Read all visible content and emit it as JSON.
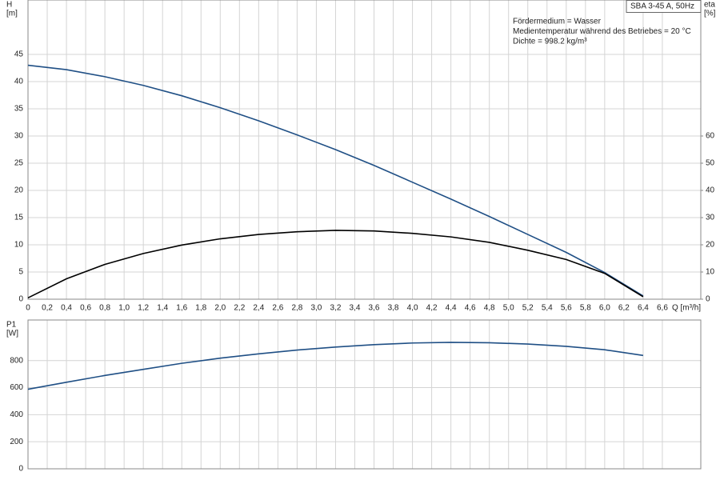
{
  "chart_data": [
    {
      "type": "line",
      "title": "SBA 3-45 A, 50Hz",
      "annotations": [
        "Fördermedium = Wasser",
        "Medientemperatur während des Betriebes = 20 °C",
        "Dichte = 998.2 kg/m³"
      ],
      "xlabel": "Q [m³/h]",
      "x": [
        0,
        0.4,
        0.8,
        1.2,
        1.6,
        2.0,
        2.4,
        2.8,
        3.2,
        3.6,
        4.0,
        4.4,
        4.8,
        5.2,
        5.6,
        6.0,
        6.4
      ],
      "series": [
        {
          "name": "H",
          "unit": "[m]",
          "color": "#1f4f85",
          "values": [
            43,
            42.2,
            40.9,
            39.3,
            37.4,
            35.2,
            32.8,
            30.2,
            27.5,
            24.6,
            21.5,
            18.4,
            15.2,
            11.9,
            8.6,
            4.9,
            0.6
          ]
        },
        {
          "name": "eta",
          "unit": "[%]",
          "color": "#000000",
          "axis": "y2",
          "values": [
            0.5,
            7.5,
            12.8,
            16.8,
            19.9,
            22.2,
            23.8,
            24.8,
            25.3,
            25.1,
            24.2,
            22.9,
            20.9,
            18.0,
            14.6,
            9.5,
            0.9
          ]
        }
      ],
      "xlim": [
        0,
        7.0
      ],
      "xticks": [
        0,
        {
          "value": 0.2,
          "label": "0,2"
        },
        {
          "value": 0.4,
          "label": "0,4"
        },
        {
          "value": 0.6,
          "label": "0,6"
        },
        {
          "value": 0.8,
          "label": "0,8"
        },
        {
          "value": 1.0,
          "label": "1,0"
        },
        {
          "value": 1.2,
          "label": "1,2"
        },
        {
          "value": 1.4,
          "label": "1,4"
        },
        {
          "value": 1.6,
          "label": "1,6"
        },
        {
          "value": 1.8,
          "label": "1,8"
        },
        {
          "value": 2.0,
          "label": "2,0"
        },
        {
          "value": 2.2,
          "label": "2,2"
        },
        {
          "value": 2.4,
          "label": "2,4"
        },
        {
          "value": 2.6,
          "label": "2,6"
        },
        {
          "value": 2.8,
          "label": "2,8"
        },
        {
          "value": 3.0,
          "label": "3,0"
        },
        {
          "value": 3.2,
          "label": "3,2"
        },
        {
          "value": 3.4,
          "label": "3,4"
        },
        {
          "value": 3.6,
          "label": "3,6"
        },
        {
          "value": 3.8,
          "label": "3,8"
        },
        {
          "value": 4.0,
          "label": "4,0"
        },
        {
          "value": 4.2,
          "label": "4,2"
        },
        {
          "value": 4.4,
          "label": "4,4"
        },
        {
          "value": 4.6,
          "label": "4,6"
        },
        {
          "value": 4.8,
          "label": "4,8"
        },
        {
          "value": 5.0,
          "label": "5,0"
        },
        {
          "value": 5.2,
          "label": "5,2"
        },
        {
          "value": 5.4,
          "label": "5,4"
        },
        {
          "value": 5.6,
          "label": "5,6"
        },
        {
          "value": 5.8,
          "label": "5,8"
        },
        {
          "value": 6.0,
          "label": "6,0"
        },
        {
          "value": 6.2,
          "label": "6,2"
        },
        {
          "value": 6.4,
          "label": "6,4"
        },
        {
          "value": 6.6,
          "label": "6,6"
        }
      ],
      "ylim": [
        0,
        55
      ],
      "yticks": [
        0,
        5,
        10,
        15,
        20,
        25,
        30,
        35,
        40,
        45
      ],
      "y2lim": [
        0,
        110
      ],
      "y2ticks": [
        0,
        10,
        20,
        30,
        40,
        50,
        60
      ],
      "grid": true
    },
    {
      "type": "line",
      "x": [
        0,
        0.4,
        0.8,
        1.2,
        1.6,
        2.0,
        2.4,
        2.8,
        3.2,
        3.6,
        4.0,
        4.4,
        4.8,
        5.2,
        5.6,
        6.0,
        6.4
      ],
      "series": [
        {
          "name": "P1",
          "unit": "[W]",
          "color": "#1f4f85",
          "values": [
            588,
            640,
            690,
            735,
            780,
            818,
            850,
            878,
            900,
            918,
            930,
            935,
            932,
            922,
            905,
            880,
            838
          ]
        }
      ],
      "xlim": [
        0,
        7.0
      ],
      "ylim": [
        0,
        1100
      ],
      "yticks": [
        0,
        200,
        400,
        600,
        800
      ],
      "grid": true
    }
  ]
}
